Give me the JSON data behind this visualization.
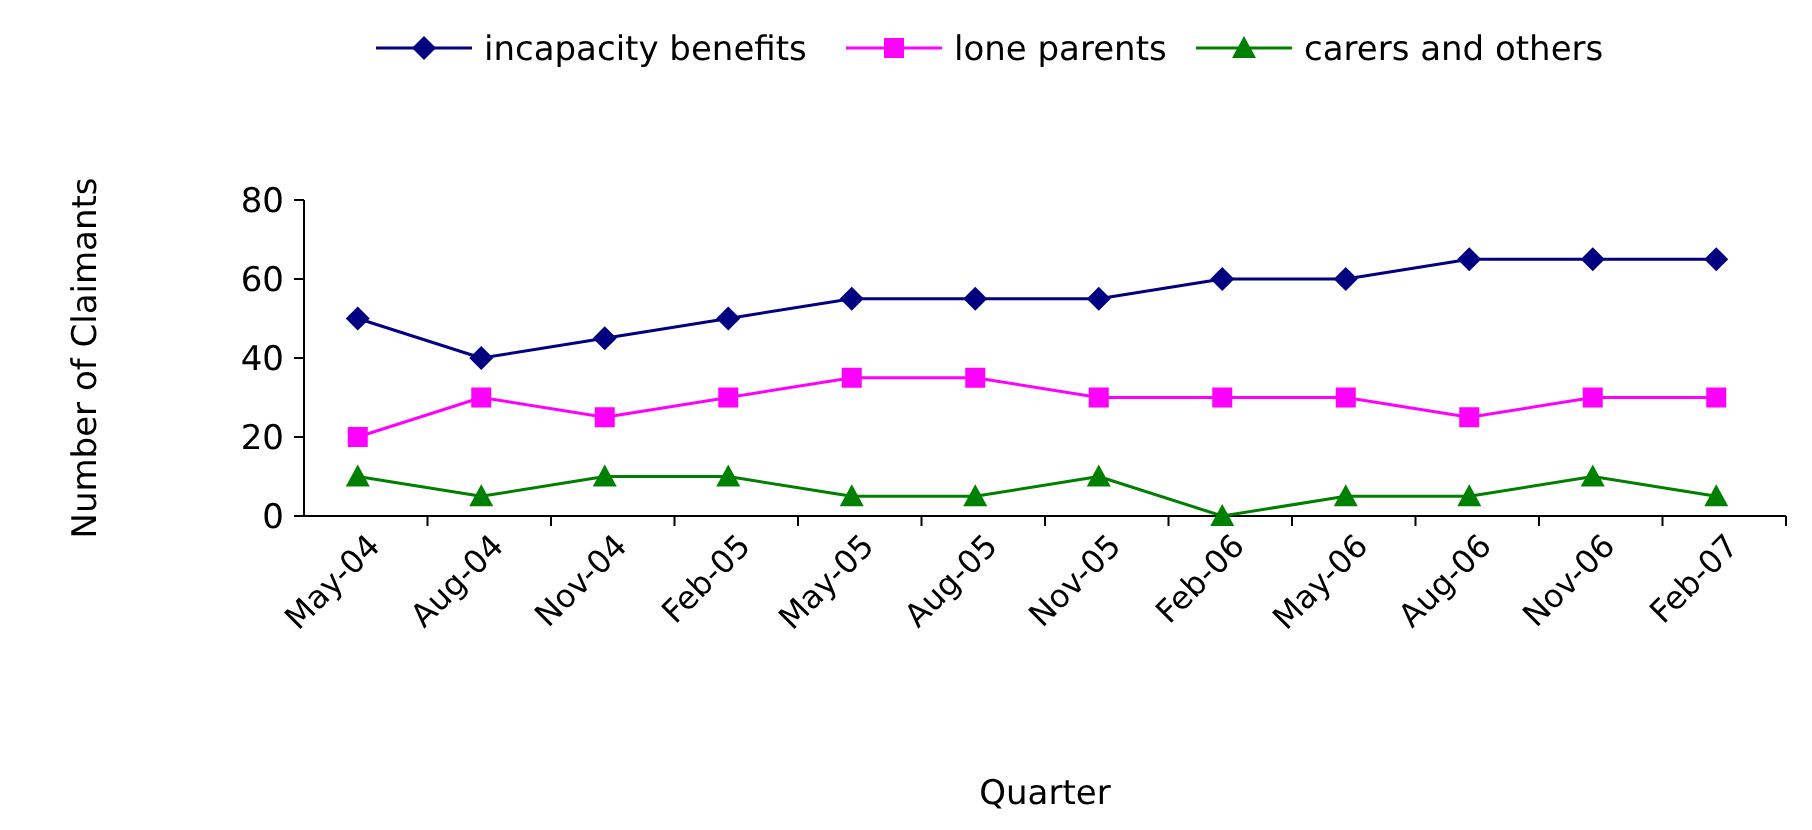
{
  "chart_data": {
    "type": "line",
    "xlabel": "Quarter",
    "ylabel": "Number of Claimants",
    "categories": [
      "May-04",
      "Aug-04",
      "Nov-04",
      "Feb-05",
      "May-05",
      "Aug-05",
      "Nov-05",
      "Feb-06",
      "May-06",
      "Aug-06",
      "Nov-06",
      "Feb-07"
    ],
    "series": [
      {
        "name": "incapacity benefits",
        "color": "#000080",
        "marker": "diamond",
        "values": [
          50,
          40,
          45,
          50,
          55,
          55,
          55,
          60,
          60,
          65,
          65,
          65
        ]
      },
      {
        "name": "lone parents",
        "color": "#ff00ff",
        "marker": "square",
        "values": [
          20,
          30,
          25,
          30,
          35,
          35,
          30,
          30,
          30,
          25,
          30,
          30
        ]
      },
      {
        "name": "carers and others",
        "color": "#008000",
        "marker": "triangle",
        "values": [
          10,
          5,
          10,
          10,
          5,
          5,
          10,
          0,
          5,
          5,
          10,
          5
        ]
      }
    ],
    "ylim": [
      0,
      80
    ],
    "yticks": [
      0,
      20,
      40,
      60,
      80
    ],
    "grid": false,
    "legend": "top"
  }
}
